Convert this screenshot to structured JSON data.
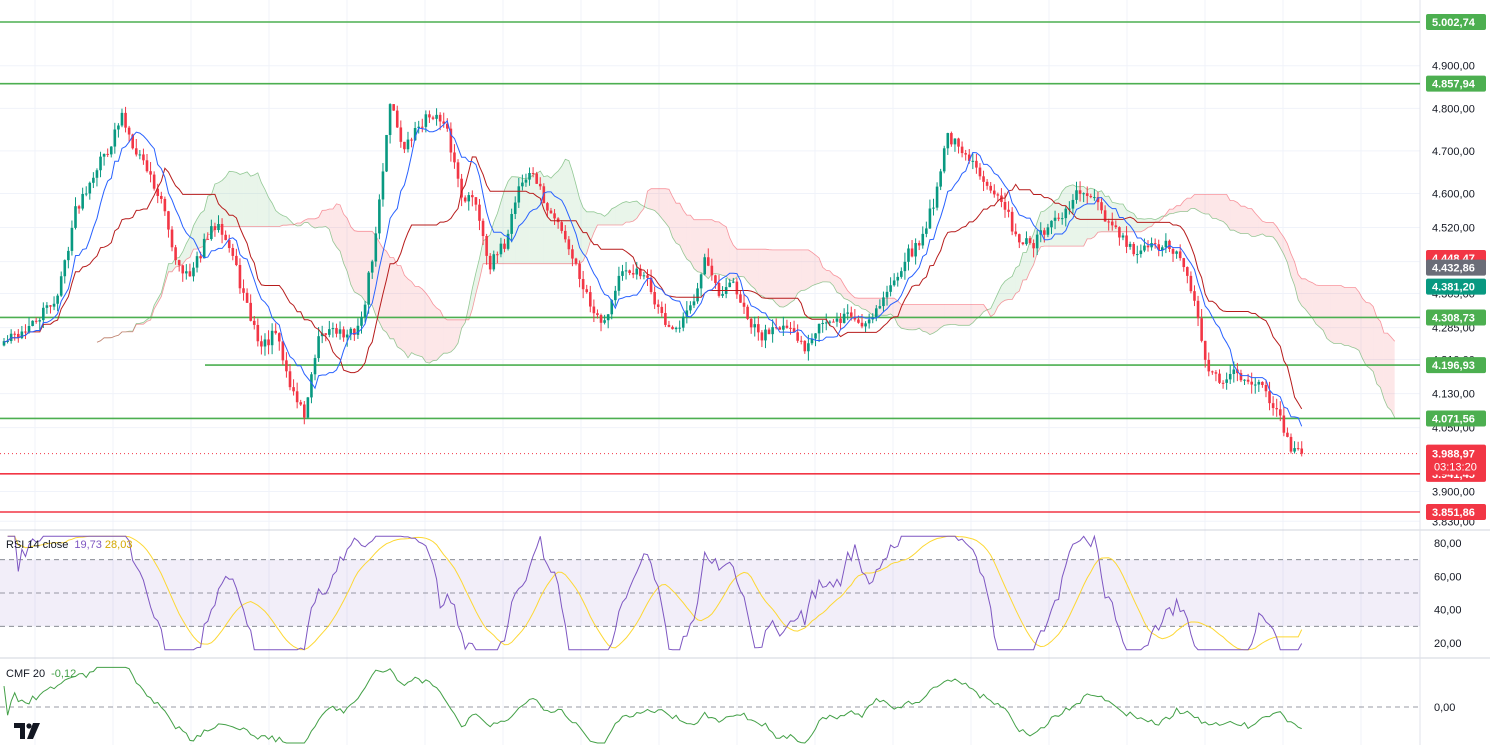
{
  "chart_data": [
    {
      "type": "candlestick",
      "title": "",
      "price_axis": {
        "ticks": [
          "4.900,00",
          "4.800,00",
          "4.700,00",
          "4.600,00",
          "4.520,00",
          "4.440,00",
          "4.365,00",
          "4.285,00",
          "4.210,00",
          "4.130,00",
          "4.050,00",
          "3.900,00",
          "3.830,00"
        ],
        "range": [
          3830,
          5040
        ]
      },
      "horizontal_levels": [
        {
          "value": 5002.74,
          "label": "5.002,74",
          "color": "#4caf50",
          "kind": "resistance"
        },
        {
          "value": 4857.94,
          "label": "4.857,94",
          "color": "#4caf50",
          "kind": "resistance"
        },
        {
          "value": 4308.73,
          "label": "4.308,73",
          "color": "#4caf50",
          "kind": "resistance"
        },
        {
          "value": 4196.93,
          "label": "4.196,93",
          "color": "#4caf50",
          "kind": "resistance"
        },
        {
          "value": 4071.56,
          "label": "4.071,56",
          "color": "#4caf50",
          "kind": "resistance"
        },
        {
          "value": 3941.45,
          "label": "3.941,45",
          "color": "#f23645",
          "kind": "support"
        },
        {
          "value": 3851.86,
          "label": "3.851,86",
          "color": "#f23645",
          "kind": "support"
        }
      ],
      "price_badges": [
        {
          "value": 4448.47,
          "label": "4.448,47",
          "color": "#f23645"
        },
        {
          "value": 4432.86,
          "label": "4.432,86",
          "color": "#6a6d78"
        },
        {
          "value": 4381.2,
          "label": "4.381,20",
          "color": "#089981"
        }
      ],
      "current_price": {
        "value": 3988.97,
        "label": "3.988,97",
        "countdown": "03:13:20",
        "color": "#f23645"
      },
      "series": [
        {
          "name": "price",
          "anchors": [
            [
              0,
              4250
            ],
            [
              8,
              4290
            ],
            [
              15,
              4360
            ],
            [
              20,
              4560
            ],
            [
              25,
              4650
            ],
            [
              30,
              4720
            ],
            [
              33,
              4780
            ],
            [
              36,
              4720
            ],
            [
              40,
              4660
            ],
            [
              44,
              4580
            ],
            [
              48,
              4450
            ],
            [
              52,
              4400
            ],
            [
              56,
              4480
            ],
            [
              60,
              4540
            ],
            [
              64,
              4450
            ],
            [
              68,
              4330
            ],
            [
              72,
              4240
            ],
            [
              76,
              4270
            ],
            [
              80,
              4150
            ],
            [
              84,
              4080
            ],
            [
              88,
              4250
            ],
            [
              92,
              4290
            ],
            [
              96,
              4260
            ],
            [
              100,
              4300
            ],
            [
              104,
              4500
            ],
            [
              108,
              4820
            ],
            [
              112,
              4700
            ],
            [
              116,
              4760
            ],
            [
              120,
              4790
            ],
            [
              124,
              4740
            ],
            [
              128,
              4600
            ],
            [
              132,
              4580
            ],
            [
              136,
              4430
            ],
            [
              140,
              4480
            ],
            [
              144,
              4620
            ],
            [
              148,
              4650
            ],
            [
              152,
              4560
            ],
            [
              156,
              4520
            ],
            [
              160,
              4430
            ],
            [
              164,
              4340
            ],
            [
              168,
              4300
            ],
            [
              172,
              4400
            ],
            [
              176,
              4420
            ],
            [
              180,
              4390
            ],
            [
              184,
              4310
            ],
            [
              188,
              4270
            ],
            [
              192,
              4330
            ],
            [
              196,
              4450
            ],
            [
              200,
              4350
            ],
            [
              204,
              4390
            ],
            [
              208,
              4300
            ],
            [
              212,
              4260
            ],
            [
              216,
              4300
            ],
            [
              220,
              4270
            ],
            [
              224,
              4240
            ],
            [
              228,
              4300
            ],
            [
              232,
              4290
            ],
            [
              236,
              4320
            ],
            [
              240,
              4290
            ],
            [
              244,
              4330
            ],
            [
              248,
              4380
            ],
            [
              252,
              4450
            ],
            [
              256,
              4480
            ],
            [
              260,
              4580
            ],
            [
              264,
              4740
            ],
            [
              268,
              4690
            ],
            [
              272,
              4660
            ],
            [
              276,
              4620
            ],
            [
              280,
              4560
            ],
            [
              284,
              4490
            ],
            [
              288,
              4480
            ],
            [
              292,
              4520
            ],
            [
              296,
              4540
            ],
            [
              300,
              4600
            ],
            [
              304,
              4590
            ],
            [
              308,
              4540
            ],
            [
              312,
              4500
            ],
            [
              316,
              4460
            ],
            [
              320,
              4470
            ],
            [
              324,
              4480
            ],
            [
              328,
              4460
            ],
            [
              332,
              4380
            ],
            [
              336,
              4210
            ],
            [
              340,
              4150
            ],
            [
              344,
              4180
            ],
            [
              348,
              4170
            ],
            [
              352,
              4140
            ],
            [
              356,
              4100
            ],
            [
              360,
              3990
            ],
            [
              363,
              3988.97
            ]
          ],
          "count": 364
        },
        {
          "name": "conversion",
          "color": "#2962ff"
        },
        {
          "name": "base",
          "color": "#b71c1c"
        }
      ]
    },
    {
      "type": "line",
      "title": "RSI",
      "params": "14 close",
      "values_label": [
        "19,73",
        "28,03"
      ],
      "axis_ticks": [
        "80,00",
        "60,00",
        "40,00",
        "20,00"
      ],
      "levels": [
        70,
        50,
        30
      ],
      "range": [
        12,
        86
      ],
      "series": [
        {
          "name": "rsi",
          "color": "#7e57c2",
          "last": 19.73
        },
        {
          "name": "rsi-ma",
          "color": "#fdd835",
          "last": 28.03
        }
      ]
    },
    {
      "type": "line",
      "title": "CMF",
      "params": "20",
      "values_label": [
        "-0,12"
      ],
      "axis_ticks": [
        "0,00"
      ],
      "zero_level": 0,
      "series": [
        {
          "name": "cmf",
          "color": "#43a047",
          "last": -0.12
        }
      ]
    }
  ]
}
